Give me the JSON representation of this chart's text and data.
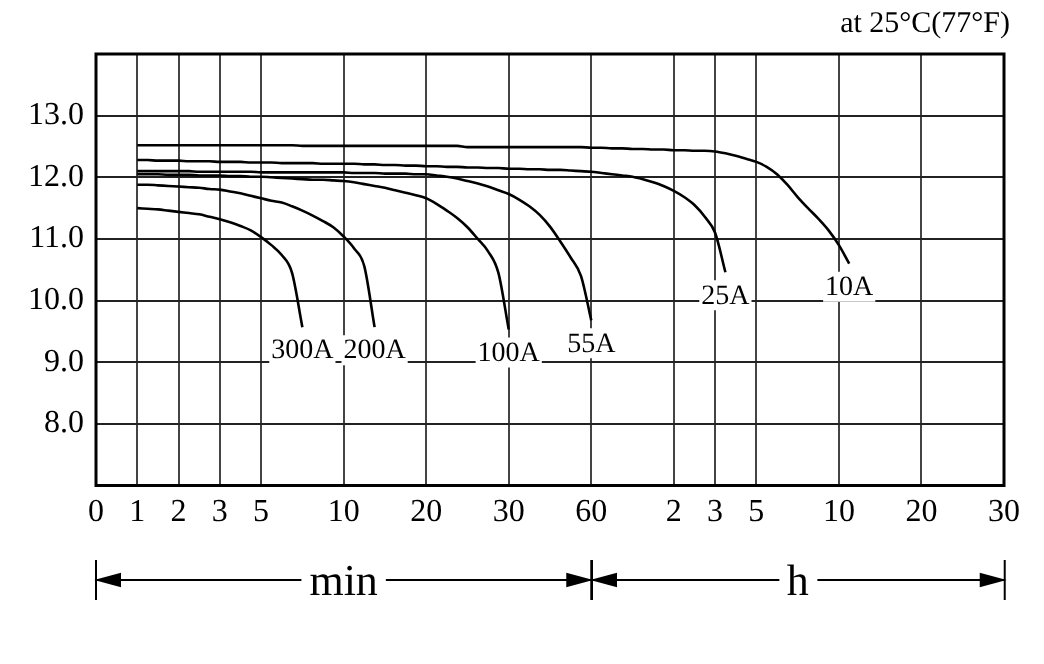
{
  "chart_data": {
    "type": "line",
    "annotations": [
      "at 25°C(77°F)",
      "min",
      "h"
    ],
    "categories": [
      "0",
      null,
      null,
      null,
      "1",
      null,
      null,
      null,
      "2",
      null,
      null,
      null,
      "3",
      null,
      null,
      null,
      "5",
      null,
      null,
      null,
      null,
      null,
      null,
      null,
      "10",
      null,
      null,
      null,
      null,
      null,
      null,
      null,
      "20",
      null,
      null,
      null,
      null,
      null,
      null,
      null,
      "30",
      null,
      null,
      null,
      null,
      null,
      null,
      null,
      "60",
      null,
      null,
      null,
      null,
      null,
      null,
      null,
      "2",
      null,
      null,
      null,
      "3",
      null,
      null,
      null,
      "5",
      null,
      null,
      null,
      null,
      null,
      null,
      null,
      "10",
      null,
      null,
      null,
      null,
      null,
      null,
      null,
      "20",
      null,
      null,
      null,
      null,
      null,
      null,
      null,
      "30"
    ],
    "ylim": [
      7,
      14
    ],
    "yticks": [
      {
        "value": 8,
        "label": "8.0"
      },
      {
        "value": 9,
        "label": "9.0"
      },
      {
        "value": 10,
        "label": "10.0"
      },
      {
        "value": 11,
        "label": "11.0"
      },
      {
        "value": 12,
        "label": "12.0"
      },
      {
        "value": 13,
        "label": "13.0"
      }
    ],
    "grid": true,
    "marker": "none",
    "line_style": "solid",
    "series": [
      {
        "name": "10A",
        "color": "#000000",
        "values": [
          null,
          null,
          null,
          null,
          12.52,
          12.52,
          12.52,
          12.52,
          12.52,
          12.52,
          12.52,
          12.52,
          12.52,
          12.52,
          12.52,
          12.52,
          12.52,
          12.52,
          12.52,
          12.52,
          12.51,
          12.51,
          12.51,
          12.51,
          12.51,
          12.51,
          12.51,
          12.51,
          12.51,
          12.51,
          12.51,
          12.51,
          12.51,
          12.51,
          12.51,
          12.51,
          12.49,
          12.49,
          12.49,
          12.49,
          12.49,
          12.49,
          12.49,
          12.49,
          12.49,
          12.49,
          12.49,
          12.49,
          12.48,
          12.48,
          12.47,
          12.47,
          12.46,
          12.46,
          12.45,
          12.45,
          12.44,
          12.44,
          12.43,
          12.43,
          12.42,
          12.39,
          12.35,
          12.3,
          12.25,
          12.17,
          12.05,
          11.88,
          11.68,
          11.5,
          11.33,
          11.14,
          10.9,
          10.6,
          null,
          null,
          null,
          null,
          null,
          null,
          null,
          null,
          null,
          null,
          null,
          null,
          null,
          null,
          null
        ]
      },
      {
        "name": "25A",
        "color": "#000000",
        "values": [
          null,
          null,
          null,
          null,
          12.28,
          12.28,
          12.27,
          12.27,
          12.27,
          12.26,
          12.26,
          12.26,
          12.25,
          12.25,
          12.25,
          12.24,
          12.24,
          12.24,
          12.23,
          12.23,
          12.23,
          12.23,
          12.22,
          12.22,
          12.22,
          12.22,
          12.21,
          12.21,
          12.2,
          12.2,
          12.19,
          12.19,
          12.18,
          12.18,
          12.17,
          12.17,
          12.16,
          12.16,
          12.15,
          12.15,
          12.14,
          12.14,
          12.13,
          12.13,
          12.12,
          12.12,
          12.11,
          12.1,
          12.09,
          12.07,
          12.05,
          12.03,
          12.01,
          11.97,
          11.92,
          11.86,
          11.78,
          11.68,
          11.55,
          11.36,
          11.1,
          10.46,
          null,
          null,
          null,
          null,
          null,
          null,
          null,
          null,
          null,
          null,
          null,
          null,
          null,
          null,
          null,
          null,
          null,
          null,
          null,
          null,
          null,
          null,
          null,
          null,
          null,
          null,
          null
        ]
      },
      {
        "name": "55A",
        "color": "#000000",
        "values": [
          null,
          null,
          null,
          null,
          12.1,
          12.1,
          12.1,
          12.1,
          12.1,
          12.1,
          12.09,
          12.09,
          12.09,
          12.09,
          12.09,
          12.09,
          12.08,
          12.08,
          12.08,
          12.08,
          12.08,
          12.08,
          12.08,
          12.08,
          12.08,
          12.07,
          12.07,
          12.07,
          12.06,
          12.06,
          12.06,
          12.05,
          12.05,
          12.03,
          12.01,
          11.98,
          11.94,
          11.9,
          11.85,
          11.79,
          11.73,
          11.64,
          11.53,
          11.39,
          11.2,
          10.96,
          10.7,
          10.4,
          9.68,
          null,
          null,
          null,
          null,
          null,
          null,
          null,
          null,
          null,
          null,
          null,
          null,
          null,
          null,
          null,
          null,
          null,
          null,
          null,
          null,
          null,
          null,
          null,
          null,
          null,
          null,
          null,
          null,
          null,
          null,
          null,
          null,
          null,
          null,
          null,
          null,
          null,
          null,
          null,
          null
        ]
      },
      {
        "name": "100A",
        "color": "#000000",
        "values": [
          null,
          null,
          null,
          null,
          12.05,
          12.05,
          12.05,
          12.04,
          12.04,
          12.04,
          12.03,
          12.03,
          12.03,
          12.02,
          12.02,
          12.01,
          12.01,
          12.0,
          11.99,
          11.98,
          11.97,
          11.96,
          11.96,
          11.95,
          11.94,
          11.92,
          11.89,
          11.86,
          11.83,
          11.79,
          11.75,
          11.71,
          11.66,
          11.57,
          11.46,
          11.34,
          11.19,
          11.0,
          10.8,
          10.45,
          9.53,
          null,
          null,
          null,
          null,
          null,
          null,
          null,
          null,
          null,
          null,
          null,
          null,
          null,
          null,
          null,
          null,
          null,
          null,
          null,
          null,
          null,
          null,
          null,
          null,
          null,
          null,
          null,
          null,
          null,
          null,
          null,
          null,
          null,
          null,
          null,
          null,
          null,
          null,
          null,
          null,
          null,
          null,
          null,
          null,
          null,
          null,
          null,
          null
        ]
      },
      {
        "name": "200A",
        "color": "#000000",
        "values": [
          null,
          null,
          null,
          null,
          11.88,
          11.88,
          11.87,
          11.86,
          11.85,
          11.84,
          11.83,
          11.81,
          11.8,
          11.77,
          11.74,
          11.7,
          11.66,
          11.62,
          11.59,
          11.53,
          11.46,
          11.38,
          11.29,
          11.19,
          11.04,
          10.85,
          10.56,
          9.57,
          null,
          null,
          null,
          null,
          null,
          null,
          null,
          null,
          null,
          null,
          null,
          null,
          null,
          null,
          null,
          null,
          null,
          null,
          null,
          null,
          null,
          null,
          null,
          null,
          null,
          null,
          null,
          null,
          null,
          null,
          null,
          null,
          null,
          null,
          null,
          null,
          null,
          null,
          null,
          null,
          null,
          null,
          null,
          null,
          null,
          null,
          null,
          null,
          null,
          null,
          null,
          null,
          null,
          null,
          null,
          null,
          null,
          null,
          null,
          null,
          null
        ]
      },
      {
        "name": "300A",
        "color": "#000000",
        "values": [
          null,
          null,
          null,
          null,
          11.5,
          11.49,
          11.48,
          11.46,
          11.44,
          11.42,
          11.4,
          11.36,
          11.32,
          11.27,
          11.21,
          11.14,
          11.03,
          10.9,
          10.74,
          10.45,
          9.57,
          null,
          null,
          null,
          null,
          null,
          null,
          null,
          null,
          null,
          null,
          null,
          null,
          null,
          null,
          null,
          null,
          null,
          null,
          null,
          null,
          null,
          null,
          null,
          null,
          null,
          null,
          null,
          null,
          null,
          null,
          null,
          null,
          null,
          null,
          null,
          null,
          null,
          null,
          null,
          null,
          null,
          null,
          null,
          null,
          null,
          null,
          null,
          null,
          null,
          null,
          null,
          null,
          null,
          null,
          null,
          null,
          null,
          null,
          null,
          null,
          null,
          null,
          null,
          null,
          null,
          null,
          null,
          null
        ]
      }
    ]
  }
}
